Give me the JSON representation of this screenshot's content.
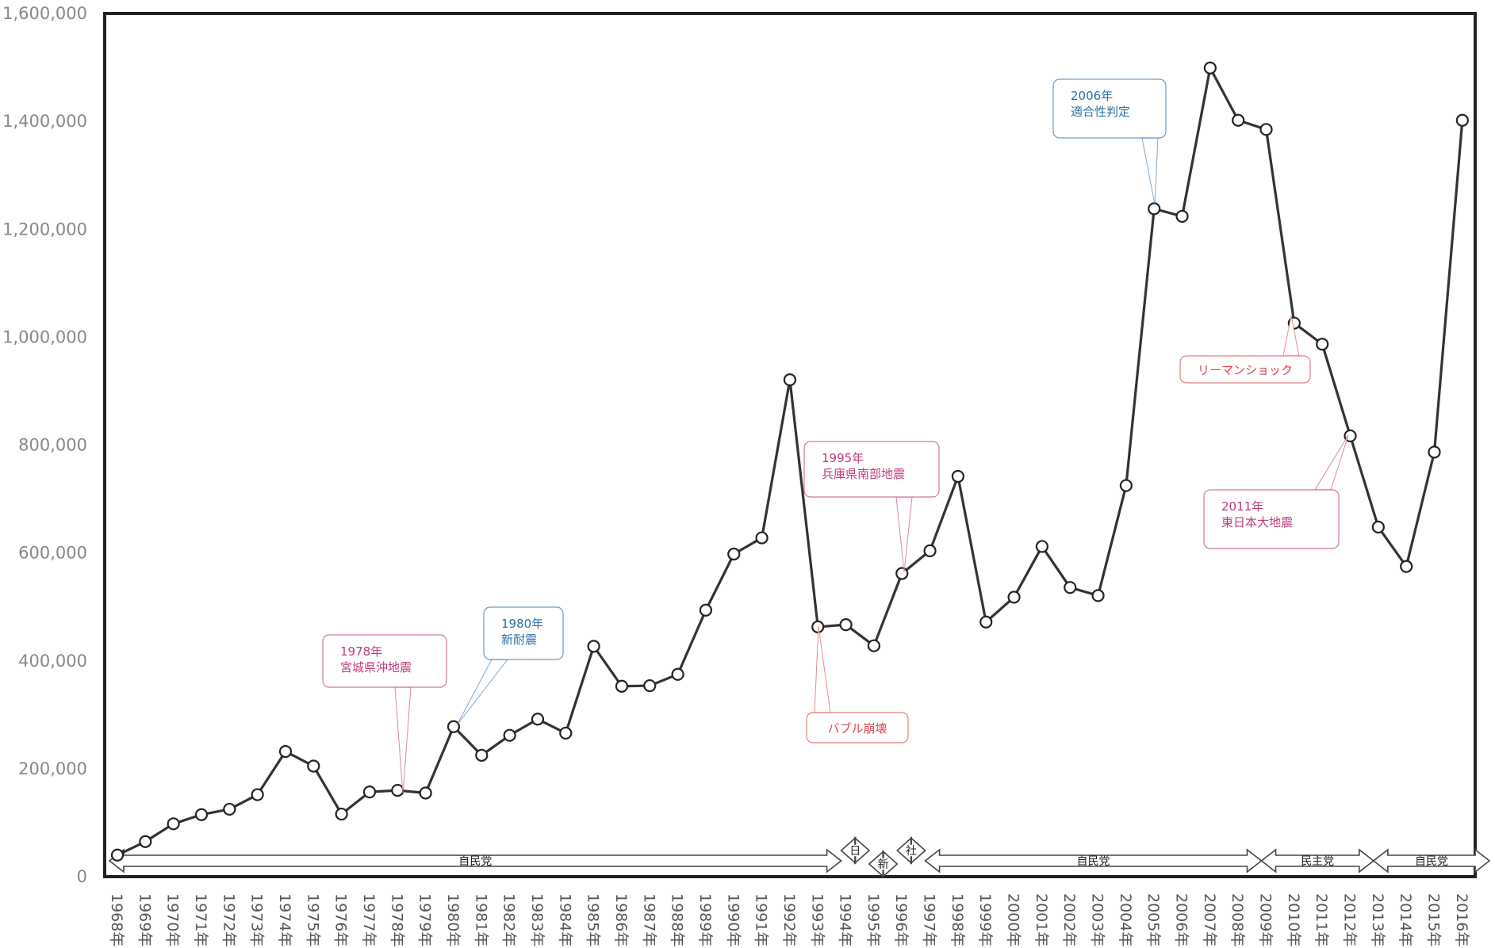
{
  "chart_data": {
    "type": "line",
    "title": "",
    "xlabel": "",
    "ylabel": "",
    "ylim": [
      0,
      1600000
    ],
    "y_ticks": [
      "0",
      "200,000",
      "400,000",
      "600,000",
      "800,000",
      "1,000,000",
      "1,200,000",
      "1,400,000",
      "1,600,000"
    ],
    "y_tick_values": [
      0,
      200000,
      400000,
      600000,
      800000,
      1000000,
      1200000,
      1400000,
      1600000
    ],
    "grid": false,
    "categories": [
      "1968年",
      "1969年",
      "1970年",
      "1971年",
      "1972年",
      "1973年",
      "1974年",
      "1975年",
      "1976年",
      "1977年",
      "1978年",
      "1979年",
      "1980年",
      "1981年",
      "1982年",
      "1983年",
      "1984年",
      "1985年",
      "1986年",
      "1987年",
      "1988年",
      "1989年",
      "1990年",
      "1991年",
      "1992年",
      "1993年",
      "1994年",
      "1995年",
      "1996年",
      "1997年",
      "1998年",
      "1999年",
      "2000年",
      "2001年",
      "2002年",
      "2003年",
      "2004年",
      "2005年",
      "2006年",
      "2007年",
      "2008年",
      "2009年",
      "2010年",
      "2011年",
      "2012年",
      "2013年",
      "2014年",
      "2015年",
      "2016年"
    ],
    "series": [
      {
        "values": [
          40000,
          65000,
          98000,
          115000,
          125000,
          152000,
          232000,
          205000,
          116000,
          157000,
          160000,
          155000,
          278000,
          225000,
          262000,
          292000,
          266000,
          427000,
          353000,
          354000,
          375000,
          494000,
          598000,
          628000,
          921000,
          463000,
          467000,
          428000,
          562000,
          604000,
          742000,
          472000,
          518000,
          612000,
          536000,
          521000,
          725000,
          1238000,
          1224000,
          1499000,
          1402000,
          1385000,
          1026000,
          987000,
          817000,
          648000,
          575000,
          787000,
          1402000
        ],
        "color": "#333333"
      }
    ],
    "annotations": [
      {
        "lines": [
          "1978年",
          "宮城県沖地震"
        ],
        "year": "1978年",
        "color": "#c0397f"
      },
      {
        "lines": [
          "1980年",
          "新耐震"
        ],
        "year": "1980年",
        "color": "#2e6fa8"
      },
      {
        "lines": [
          "1995年",
          "兵庫県南部地震"
        ],
        "year": "1996年",
        "color": "#c0397f"
      },
      {
        "lines": [
          "バブル崩壊"
        ],
        "year": "1993年",
        "color": "#d9454c"
      },
      {
        "lines": [
          "2006年",
          "適合性判定"
        ],
        "year": "2005年",
        "color": "#2e6fa8"
      },
      {
        "lines": [
          "リーマンショック"
        ],
        "year": "2010年",
        "color": "#d9454c"
      },
      {
        "lines": [
          "2011年",
          "東日本大地震"
        ],
        "year": "2012年",
        "color": "#c0397f"
      }
    ],
    "parties": [
      {
        "label": "自民党",
        "from": "1968年",
        "to": "1994年"
      },
      {
        "label": "日",
        "from": "1994年",
        "to": "1995年"
      },
      {
        "label": "新",
        "from": "1995年",
        "to": "1996年"
      },
      {
        "label": "社",
        "from": "1996年",
        "to": "1997年"
      },
      {
        "label": "自民党",
        "from": "1997年",
        "to": "2009年"
      },
      {
        "label": "民主党",
        "from": "2009年",
        "to": "2013年"
      },
      {
        "label": "自民党",
        "from": "2013年",
        "to": "2016年"
      }
    ]
  }
}
